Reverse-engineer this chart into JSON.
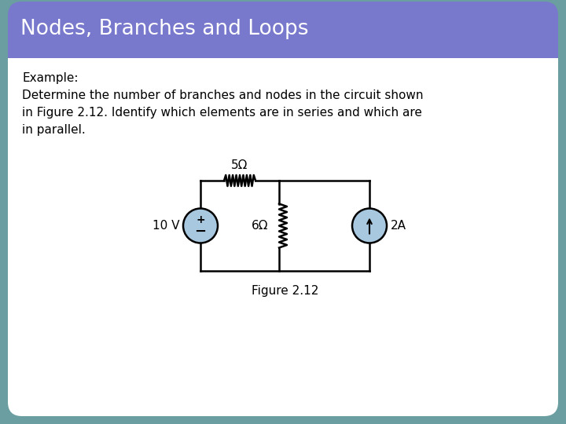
{
  "title": "Nodes, Branches and Loops",
  "title_bg": "#7878cc",
  "slide_bg": "#ffffff",
  "outer_bg": "#6a9ea0",
  "body_lines": [
    "Example:",
    "Determine the number of branches and nodes in the circuit shown",
    "in Figure 2.12. Identify which elements are in series and which are",
    "in parallel."
  ],
  "figure_caption": "Figure 2.12",
  "font_color": "#000000",
  "title_font_color": "#ffffff",
  "element_color": "#a8c8e0",
  "circuit_color": "#000000",
  "resistor_label_5": "5Ω",
  "resistor_label_6": "6Ω",
  "voltage_label": "10 V",
  "current_label": "2A",
  "xL": 255,
  "xM": 355,
  "xR": 470,
  "yT": 310,
  "yB": 195,
  "vs_r": 22,
  "cs_r": 22
}
